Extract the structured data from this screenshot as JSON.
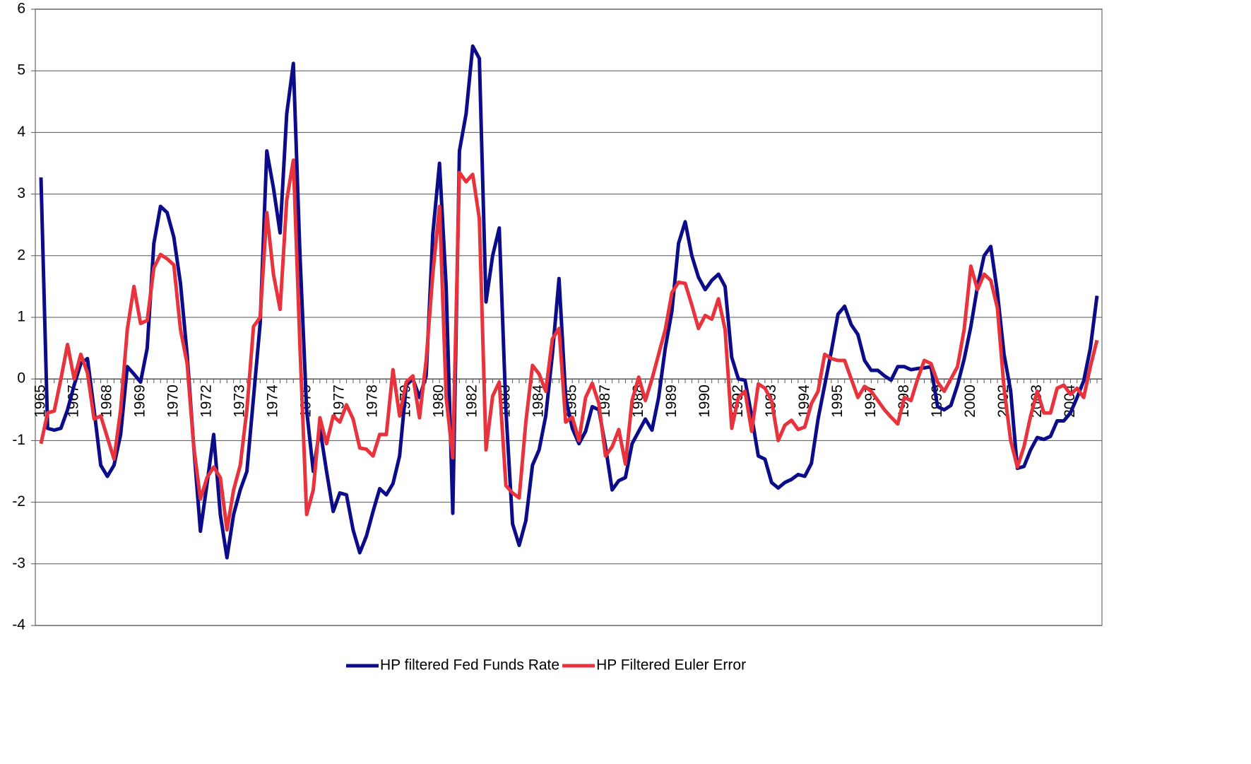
{
  "chart_data": {
    "type": "line",
    "categories": [
      "1965",
      null,
      null,
      null,
      null,
      "1967",
      null,
      null,
      null,
      null,
      "1968",
      null,
      null,
      null,
      null,
      "1969",
      null,
      null,
      null,
      null,
      "1970",
      null,
      null,
      null,
      null,
      "1972",
      null,
      null,
      null,
      null,
      "1973",
      null,
      null,
      null,
      null,
      "1974",
      null,
      null,
      null,
      null,
      "1975",
      null,
      null,
      null,
      null,
      "1977",
      null,
      null,
      null,
      null,
      "1978",
      null,
      null,
      null,
      null,
      "1979",
      null,
      null,
      null,
      null,
      "1980",
      null,
      null,
      null,
      null,
      "1982",
      null,
      null,
      null,
      null,
      "1983",
      null,
      null,
      null,
      null,
      "1984",
      null,
      null,
      null,
      null,
      "1985",
      null,
      null,
      null,
      null,
      "1987",
      null,
      null,
      null,
      null,
      "1988",
      null,
      null,
      null,
      null,
      "1989",
      null,
      null,
      null,
      null,
      "1990",
      null,
      null,
      null,
      null,
      "1992",
      null,
      null,
      null,
      null,
      "1993",
      null,
      null,
      null,
      null,
      "1994",
      null,
      null,
      null,
      null,
      "1995",
      null,
      null,
      null,
      null,
      "1997",
      null,
      null,
      null,
      null,
      "1998",
      null,
      null,
      null,
      null,
      "1999",
      null,
      null,
      null,
      null,
      "2000",
      null,
      null,
      null,
      null,
      "2002",
      null,
      null,
      null,
      null,
      "2003",
      null,
      null,
      null,
      null,
      "2004",
      null,
      null,
      null,
      null
    ],
    "series": [
      {
        "name": "HP filtered Fed Funds Rate",
        "color": "#0c0c8a",
        "values": [
          3.27,
          -0.8,
          -0.83,
          -0.8,
          -0.5,
          -0.1,
          0.25,
          0.33,
          -0.5,
          -1.4,
          -1.58,
          -1.4,
          -0.9,
          0.2,
          0.08,
          -0.05,
          0.5,
          2.2,
          2.8,
          2.7,
          2.3,
          1.55,
          0.4,
          -1.1,
          -2.47,
          -1.7,
          -0.9,
          -2.2,
          -2.9,
          -2.2,
          -1.8,
          -1.5,
          -0.3,
          0.9,
          3.7,
          3.1,
          2.37,
          4.3,
          5.12,
          2.0,
          -0.5,
          -1.5,
          -0.8,
          -1.5,
          -2.15,
          -1.85,
          -1.88,
          -2.45,
          -2.82,
          -2.55,
          -2.15,
          -1.78,
          -1.88,
          -1.7,
          -1.25,
          -0.1,
          0.0,
          -0.3,
          0.05,
          2.35,
          3.5,
          1.5,
          -2.18,
          3.7,
          4.3,
          5.4,
          5.2,
          1.25,
          2.0,
          2.45,
          -0.5,
          -2.35,
          -2.7,
          -2.3,
          -1.4,
          -1.15,
          -0.6,
          0.4,
          1.63,
          -0.3,
          -0.8,
          -1.05,
          -0.85,
          -0.45,
          -0.5,
          -1.1,
          -1.8,
          -1.65,
          -1.6,
          -1.05,
          -0.85,
          -0.65,
          -0.83,
          -0.3,
          0.5,
          1.1,
          2.2,
          2.55,
          2.0,
          1.65,
          1.45,
          1.6,
          1.7,
          1.5,
          0.35,
          0.0,
          -0.02,
          -0.6,
          -1.25,
          -1.3,
          -1.68,
          -1.77,
          -1.68,
          -1.63,
          -1.55,
          -1.58,
          -1.37,
          -0.65,
          -0.1,
          0.45,
          1.05,
          1.18,
          0.88,
          0.72,
          0.3,
          0.14,
          0.14,
          0.05,
          -0.02,
          0.2,
          0.2,
          0.15,
          0.17,
          0.18,
          0.2,
          -0.45,
          -0.5,
          -0.43,
          -0.1,
          0.32,
          0.85,
          1.5,
          2.0,
          2.15,
          1.4,
          0.4,
          -0.2,
          -1.45,
          -1.42,
          -1.15,
          -0.95,
          -0.98,
          -0.93,
          -0.68,
          -0.68,
          -0.55,
          -0.3,
          -0.03,
          0.5,
          1.35
        ]
      },
      {
        "name": "HP Filtered Euler Error",
        "color": "#e8323c",
        "values": [
          -1.05,
          -0.55,
          -0.52,
          0.0,
          0.56,
          0.0,
          0.4,
          0.1,
          -0.65,
          -0.6,
          -0.95,
          -1.3,
          -0.5,
          0.8,
          1.5,
          0.9,
          0.95,
          1.8,
          2.02,
          1.95,
          1.85,
          0.8,
          0.25,
          -1.1,
          -1.95,
          -1.6,
          -1.43,
          -1.6,
          -2.45,
          -1.8,
          -1.4,
          -0.5,
          0.85,
          1.0,
          2.7,
          1.7,
          1.13,
          2.9,
          3.55,
          0.5,
          -2.2,
          -1.8,
          -0.63,
          -1.05,
          -0.6,
          -0.7,
          -0.42,
          -0.65,
          -1.12,
          -1.14,
          -1.25,
          -0.9,
          -0.9,
          0.15,
          -0.6,
          -0.05,
          0.05,
          -0.63,
          0.3,
          1.7,
          2.8,
          -0.3,
          -1.28,
          3.35,
          3.2,
          3.32,
          2.6,
          -1.15,
          -0.28,
          -0.05,
          -1.73,
          -1.85,
          -1.93,
          -0.7,
          0.22,
          0.08,
          -0.2,
          0.65,
          0.82,
          -0.7,
          -0.62,
          -1.0,
          -0.3,
          -0.07,
          -0.4,
          -1.25,
          -1.1,
          -0.82,
          -1.38,
          -0.35,
          0.03,
          -0.35,
          0.0,
          0.4,
          0.8,
          1.4,
          1.57,
          1.55,
          1.2,
          0.82,
          1.03,
          0.97,
          1.3,
          0.8,
          -0.8,
          -0.3,
          -0.2,
          -0.85,
          -0.08,
          -0.15,
          -0.35,
          -1.0,
          -0.75,
          -0.67,
          -0.82,
          -0.78,
          -0.4,
          -0.2,
          0.4,
          0.33,
          0.3,
          0.3,
          0.0,
          -0.3,
          -0.12,
          -0.2,
          -0.35,
          -0.5,
          -0.62,
          -0.73,
          -0.3,
          -0.35,
          0.0,
          0.3,
          0.25,
          -0.05,
          -0.2,
          0.0,
          0.2,
          0.8,
          1.83,
          1.45,
          1.7,
          1.6,
          1.15,
          -0.15,
          -1.0,
          -1.43,
          -1.1,
          -0.6,
          -0.2,
          -0.55,
          -0.55,
          -0.15,
          -0.1,
          -0.25,
          -0.15,
          -0.3,
          0.2,
          0.63
        ]
      }
    ],
    "ylim": [
      -4,
      6
    ],
    "yticks": [
      -4,
      -3,
      -2,
      -1,
      0,
      1,
      2,
      3,
      4,
      5,
      6
    ],
    "grid": true,
    "legend": "bottom"
  }
}
